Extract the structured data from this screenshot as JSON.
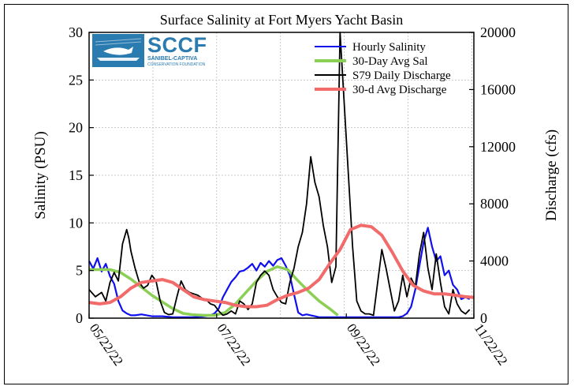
{
  "chart_data": {
    "type": "line",
    "title": "Surface Salinity at Fort Myers Yacht Basin",
    "ylabel": "Salinity (PSU)",
    "y2label": "Discharge (cfs)",
    "ylim": [
      0,
      30
    ],
    "y2lim": [
      0,
      20000
    ],
    "y_ticks": [
      0,
      5,
      10,
      15,
      20,
      25,
      30
    ],
    "y2_ticks": [
      0,
      4000,
      8000,
      12000,
      16000,
      20000
    ],
    "x_ticks": [
      "05/22/22",
      "07/22/22",
      "09/22/22",
      "11/22/22"
    ],
    "x_tick_days": [
      0,
      61,
      123,
      184
    ],
    "xlim": [
      0,
      184
    ],
    "grid": true,
    "legend_position": "top-right",
    "series": [
      {
        "name": "Hourly Salinity",
        "axis": "left",
        "color": "#1010ee",
        "x": [
          0,
          2,
          4,
          6,
          8,
          10,
          12,
          14,
          16,
          18,
          20,
          22,
          25,
          30,
          35,
          40,
          45,
          50,
          55,
          58,
          60,
          62,
          64,
          66,
          68,
          70,
          72,
          74,
          76,
          78,
          80,
          82,
          84,
          86,
          88,
          90,
          92,
          94,
          96,
          98,
          100,
          102,
          104,
          106,
          108,
          110,
          112,
          114,
          116,
          118,
          120,
          122,
          124,
          126,
          128,
          130,
          132,
          134,
          136,
          138,
          140,
          142,
          144,
          146,
          148,
          150,
          152,
          154,
          156,
          158,
          160,
          162,
          164,
          166,
          168,
          170,
          172,
          174,
          176,
          178,
          180,
          182
        ],
        "y": [
          6.0,
          5.2,
          6.3,
          4.9,
          5.7,
          4.4,
          3.6,
          1.8,
          0.8,
          0.5,
          0.3,
          0.3,
          0.4,
          0.2,
          0.2,
          0.1,
          0.1,
          0.1,
          0.2,
          0.3,
          0.5,
          1.0,
          2.2,
          3.0,
          3.8,
          4.3,
          4.9,
          5.0,
          5.3,
          5.7,
          5.0,
          5.8,
          5.4,
          6.0,
          5.5,
          6.1,
          6.3,
          5.5,
          4.5,
          2.5,
          0.6,
          0.3,
          0.4,
          0.3,
          0.2,
          0.1,
          0.1,
          0.1,
          0.1,
          0.1,
          0.1,
          0.1,
          0.1,
          0.1,
          0.1,
          0.1,
          0.1,
          0.1,
          0.1,
          0.1,
          0.1,
          0.1,
          0.1,
          0.1,
          0.1,
          0.2,
          0.5,
          1.2,
          3.0,
          5.5,
          8.0,
          9.5,
          7.5,
          6.0,
          6.5,
          4.5,
          5.0,
          3.5,
          3.0,
          2.0,
          2.2,
          2.0
        ]
      },
      {
        "name": "30-Day Avg Sal",
        "axis": "left",
        "color": "#8ccf55",
        "x": [
          0,
          10,
          15,
          20,
          30,
          40,
          45,
          50,
          55,
          60,
          65,
          70,
          75,
          80,
          85,
          90,
          95,
          100,
          105,
          110,
          115,
          119
        ],
        "y": [
          5.1,
          5.1,
          4.8,
          4.1,
          2.4,
          1.0,
          0.5,
          0.35,
          0.3,
          0.3,
          0.6,
          1.5,
          2.7,
          3.9,
          4.9,
          5.4,
          5.1,
          3.9,
          2.8,
          1.8,
          1.0,
          0.3
        ]
      },
      {
        "name": "S79 Daily Discharge",
        "axis": "right",
        "color": "#000000",
        "x": [
          0,
          3,
          6,
          8,
          10,
          12,
          14,
          16,
          18,
          19,
          20,
          22,
          24,
          26,
          28,
          30,
          32,
          34,
          36,
          38,
          40,
          42,
          44,
          46,
          48,
          50,
          52,
          54,
          56,
          58,
          60,
          62,
          64,
          66,
          68,
          70,
          72,
          74,
          76,
          78,
          80,
          82,
          84,
          86,
          88,
          90,
          92,
          94,
          96,
          98,
          100,
          102,
          104,
          106,
          108,
          110,
          112,
          114,
          116,
          118,
          120,
          122,
          124,
          126,
          128,
          130,
          132,
          134,
          136,
          138,
          140,
          142,
          144,
          146,
          148,
          150,
          152,
          154,
          156,
          158,
          160,
          162,
          164,
          166,
          168,
          170,
          172,
          174,
          176,
          178,
          180,
          182
        ],
        "y": [
          2000,
          1500,
          1800,
          1200,
          2500,
          3200,
          2600,
          5200,
          6200,
          5600,
          4700,
          3500,
          2500,
          2100,
          2300,
          3000,
          2600,
          1200,
          400,
          250,
          300,
          1500,
          2600,
          2000,
          1800,
          1700,
          1600,
          1400,
          1300,
          1000,
          900,
          500,
          200,
          300,
          500,
          300,
          1200,
          1000,
          600,
          1000,
          2500,
          3000,
          3300,
          3000,
          2000,
          1500,
          1100,
          1000,
          2500,
          3500,
          5000,
          6000,
          8000,
          11300,
          9500,
          8500,
          6500,
          5000,
          2500,
          3600,
          20000,
          15000,
          10000,
          5000,
          1200,
          500,
          300,
          300,
          200,
          2500,
          4800,
          3500,
          2000,
          500,
          1200,
          3000,
          1500,
          2800,
          2200,
          4500,
          6000,
          3500,
          2000,
          4500,
          2500,
          800,
          300,
          2000,
          1000,
          500,
          300,
          600
        ]
      },
      {
        "name": "30-d Avg Discharge",
        "axis": "right",
        "color": "#f26b6b",
        "x": [
          0,
          5,
          10,
          15,
          20,
          25,
          30,
          35,
          40,
          45,
          50,
          55,
          60,
          65,
          70,
          75,
          80,
          85,
          90,
          95,
          100,
          105,
          110,
          115,
          120,
          125,
          130,
          135,
          140,
          145,
          150,
          155,
          160,
          165,
          170,
          175,
          180,
          184
        ],
        "y": [
          1100,
          1000,
          1100,
          1500,
          2100,
          2500,
          2600,
          2700,
          2500,
          2000,
          1500,
          1300,
          1200,
          1100,
          900,
          800,
          800,
          900,
          1300,
          1600,
          1800,
          2100,
          2700,
          3800,
          4800,
          6200,
          6500,
          6400,
          5800,
          4600,
          3300,
          2300,
          1900,
          1700,
          1700,
          1600,
          1500,
          1450
        ]
      }
    ]
  },
  "logo": {
    "main": "SCCF",
    "sub1": "SANIBEL-CAPTIVA",
    "sub2": "CONSERVATION FOUNDATION"
  }
}
